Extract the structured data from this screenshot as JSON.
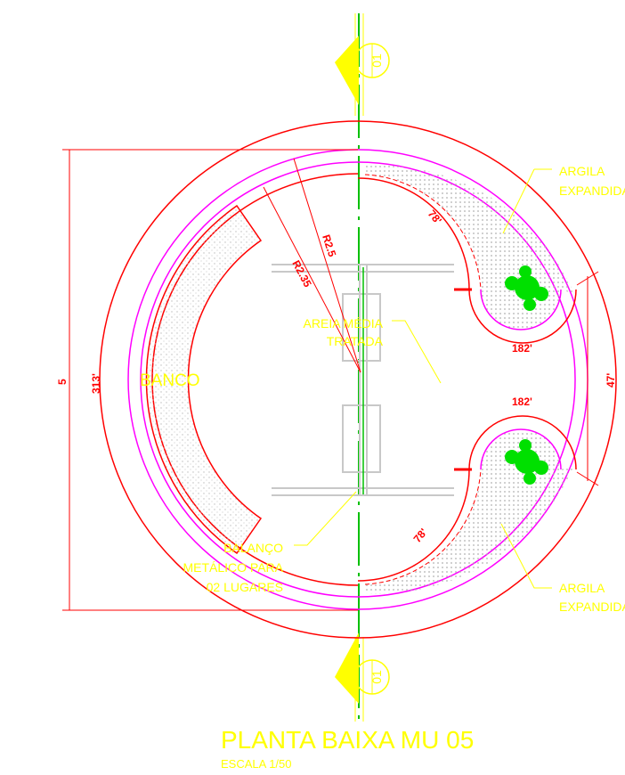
{
  "section_markers": [
    {
      "letter": "A'",
      "number": "01"
    },
    {
      "letter": "A'",
      "number": "01"
    }
  ],
  "dimensions": {
    "radius_outer": "R2.5",
    "radius_inner": "R2.35",
    "arc_top": "78'",
    "arc_bottom": "78'",
    "width_top": "182'",
    "width_bottom": "182'",
    "gap": "47'",
    "height": "5",
    "height_inner": "313'"
  },
  "annotations": {
    "bench": "BANCO",
    "sand": [
      "AREIA MÉDIA",
      "TRATADA"
    ],
    "clay_top": [
      "ARGILA",
      "EXPANDIDA"
    ],
    "clay_bottom": [
      "ARGILA",
      "EXPANDIDA"
    ],
    "swing": [
      "BALANÇO",
      "METÁLICO PARA",
      "02 LUGARES"
    ]
  },
  "title": "PLANTA BAIXA MU 05",
  "scale": "ESCALA 1/50"
}
